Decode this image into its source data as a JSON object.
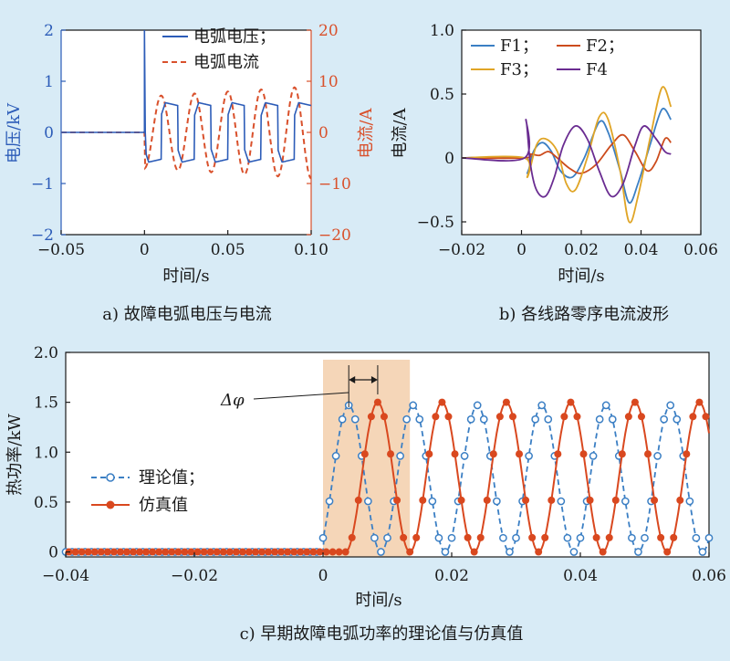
{
  "chart_data": [
    {
      "type": "line",
      "caption": "a) 故障电弧电压与电流",
      "xlabel": "时间/s",
      "ylabel_left": "电压/kV",
      "ylabel_right": "电流/A",
      "xlim": [
        -0.05,
        0.1
      ],
      "ylim_left": [
        -2,
        2
      ],
      "ylim_right": [
        -20,
        20
      ],
      "xticks": [
        "−0.05",
        "0",
        "0.05",
        "0.10"
      ],
      "yticks_left": [
        "2",
        "1",
        "0",
        "−1",
        "−2"
      ],
      "yticks_right": [
        "20",
        "10",
        "0",
        "−10",
        "−20"
      ],
      "legend_position": "top-right",
      "series": [
        {
          "name": "电弧电压；",
          "axis": "left",
          "color": "#2c5cb8",
          "style": "solid",
          "description": "0 before fault; spike to 2.0 at t=0, then square-like arc voltage ±0.6 kV, period 0.02 s",
          "period": 0.02,
          "amplitude": 0.6,
          "spike": 2.0
        },
        {
          "name": "电弧电流",
          "axis": "right",
          "color": "#d9512c",
          "style": "dashed",
          "description": "0 before fault; sinusoid with amplitude growing from ~7 A to ~9 A, period 0.02 s",
          "period": 0.02,
          "amplitude_start": 7,
          "amplitude_end": 9
        }
      ]
    },
    {
      "type": "line",
      "caption": "b) 各线路零序电流波形",
      "xlabel": "时间/s",
      "ylabel": "电流/A",
      "xlim": [
        -0.02,
        0.06
      ],
      "ylim": [
        -0.6,
        1.0
      ],
      "xticks": [
        "−0.02",
        "0",
        "0.02",
        "0.04",
        "0.06"
      ],
      "yticks": [
        "1.0",
        "0.5",
        "0",
        "−0.5"
      ],
      "legend_position": "top-left",
      "series": [
        {
          "name": "F1；",
          "color": "#3b7fc4",
          "points": [
            [
              -0.02,
              0
            ],
            [
              0.001,
              0
            ],
            [
              0.002,
              -0.12
            ],
            [
              0.004,
              0.05
            ],
            [
              0.007,
              0.12
            ],
            [
              0.01,
              0.05
            ],
            [
              0.013,
              -0.1
            ],
            [
              0.017,
              -0.15
            ],
            [
              0.021,
              0
            ],
            [
              0.026,
              0.28
            ],
            [
              0.029,
              0.2
            ],
            [
              0.033,
              -0.1
            ],
            [
              0.036,
              -0.35
            ],
            [
              0.039,
              -0.2
            ],
            [
              0.043,
              0.1
            ],
            [
              0.047,
              0.38
            ],
            [
              0.05,
              0.3
            ]
          ]
        },
        {
          "name": "F2；",
          "color": "#cc4b1c",
          "points": [
            [
              -0.02,
              0
            ],
            [
              0.001,
              0
            ],
            [
              0.003,
              0.03
            ],
            [
              0.006,
              0.02
            ],
            [
              0.009,
              0.05
            ],
            [
              0.012,
              0
            ],
            [
              0.016,
              -0.08
            ],
            [
              0.02,
              -0.12
            ],
            [
              0.025,
              -0.05
            ],
            [
              0.03,
              0.1
            ],
            [
              0.034,
              0.18
            ],
            [
              0.038,
              0.05
            ],
            [
              0.042,
              -0.1
            ],
            [
              0.045,
              -0.03
            ],
            [
              0.048,
              0.15
            ],
            [
              0.05,
              0.12
            ]
          ]
        },
        {
          "name": "F3；",
          "color": "#e0a526",
          "points": [
            [
              -0.02,
              0
            ],
            [
              0.001,
              0
            ],
            [
              0.002,
              -0.15
            ],
            [
              0.005,
              0.1
            ],
            [
              0.008,
              0.15
            ],
            [
              0.012,
              0.05
            ],
            [
              0.015,
              -0.2
            ],
            [
              0.018,
              -0.25
            ],
            [
              0.022,
              0
            ],
            [
              0.026,
              0.32
            ],
            [
              0.029,
              0.3
            ],
            [
              0.033,
              -0.1
            ],
            [
              0.036,
              -0.5
            ],
            [
              0.039,
              -0.3
            ],
            [
              0.043,
              0.15
            ],
            [
              0.047,
              0.55
            ],
            [
              0.05,
              0.4
            ]
          ]
        },
        {
          "name": "F4",
          "color": "#6a2c91",
          "points": [
            [
              -0.02,
              0
            ],
            [
              0.001,
              0
            ],
            [
              0.0015,
              0.3
            ],
            [
              0.003,
              -0.05
            ],
            [
              0.005,
              -0.25
            ],
            [
              0.008,
              -0.3
            ],
            [
              0.011,
              -0.15
            ],
            [
              0.014,
              0.1
            ],
            [
              0.018,
              0.25
            ],
            [
              0.022,
              0.15
            ],
            [
              0.026,
              -0.1
            ],
            [
              0.03,
              -0.3
            ],
            [
              0.034,
              -0.2
            ],
            [
              0.038,
              0.1
            ],
            [
              0.041,
              0.25
            ],
            [
              0.045,
              0.15
            ],
            [
              0.048,
              0.05
            ],
            [
              0.05,
              0.03
            ]
          ]
        }
      ]
    },
    {
      "type": "line",
      "caption": "c) 早期故障电弧功率的理论值与仿真值",
      "xlabel": "时间/s",
      "ylabel": "热功率/kW",
      "xlim": [
        -0.04,
        0.06
      ],
      "ylim": [
        -0.05,
        2.0
      ],
      "xticks": [
        "−0.04",
        "−0.02",
        "0",
        "0.02",
        "0.04",
        "0.06"
      ],
      "yticks": [
        "2.0",
        "1.5",
        "1.0",
        "0.5",
        "0"
      ],
      "legend_position": "center-left",
      "annotation": "Δφ",
      "highlight_region": [
        0,
        0.0135
      ],
      "series": [
        {
          "name": "理论值；",
          "color": "#3b7fc4",
          "style": "dashed",
          "marker": "open-circle",
          "description": "0 before t=0; |sin| shape with peak 1.47 kW, half-period 0.01 s, peaks at 0.004+0.01k",
          "peak": 1.47,
          "half_period": 0.01,
          "first_peak": 0.004
        },
        {
          "name": "仿真值",
          "color": "#d9481f",
          "style": "solid",
          "marker": "filled-circle",
          "description": "0 before t=0; |sin| shape with peak ~1.5 kW, half-period 0.01 s, peaks at 0.0085+0.01k",
          "peak": 1.5,
          "half_period": 0.01,
          "first_peak": 0.0085
        }
      ]
    }
  ],
  "colors": {
    "background": "#d8ebf6",
    "highlight": "#f5d6b8",
    "blue": "#2c5cb8",
    "red": "#d9512c"
  }
}
